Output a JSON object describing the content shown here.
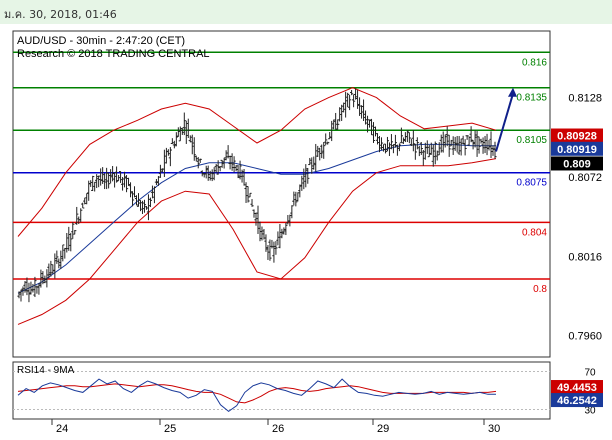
{
  "header": {
    "timestamp": "ม.ค. 30, 2018, 01:46"
  },
  "chart_data": {
    "type": "candlestick",
    "title": "AUD/USD - 30min - 2:47:20 (CET)",
    "subtitle": "Research © 2018 TRADING CENTRAL",
    "x_axis_labels": [
      "24",
      "25",
      "26",
      "29",
      "30"
    ],
    "y_axis_labels": [
      "0.8128",
      "0.8072",
      "0.8016",
      "0.7960"
    ],
    "ylim": [
      0.7945,
      0.8175
    ],
    "horizontal_levels": [
      {
        "label": "0.816",
        "value": 0.816,
        "color": "#008000"
      },
      {
        "label": "0.8135",
        "value": 0.8135,
        "color": "#008000"
      },
      {
        "label": "0.8105",
        "value": 0.8105,
        "color": "#008000"
      },
      {
        "label": "0.8075",
        "value": 0.8075,
        "color": "#0000cc"
      },
      {
        "label": "0.804",
        "value": 0.804,
        "color": "#dd0000"
      },
      {
        "label": "0.8",
        "value": 0.8,
        "color": "#dd0000"
      }
    ],
    "price_tags": [
      {
        "label": "0.80928",
        "value": 0.80928,
        "color": "#cc0000"
      },
      {
        "label": "0.80919",
        "value": 0.80919,
        "color": "#1a3a9a"
      },
      {
        "label": "0.809",
        "value": 0.809,
        "color": "#000000"
      }
    ],
    "price_path": [
      [
        0.7988,
        0.7996
      ],
      [
        0.7996,
        0.7992
      ],
      [
        0.7992,
        0.8
      ],
      [
        0.8,
        0.8005
      ],
      [
        0.8005,
        0.8012
      ],
      [
        0.8012,
        0.8022
      ],
      [
        0.8022,
        0.8035
      ],
      [
        0.8035,
        0.805
      ],
      [
        0.805,
        0.8065
      ],
      [
        0.8065,
        0.8072
      ],
      [
        0.8072,
        0.8068
      ],
      [
        0.8068,
        0.8075
      ],
      [
        0.8075,
        0.807
      ],
      [
        0.807,
        0.8066
      ],
      [
        0.8066,
        0.8055
      ],
      [
        0.8055,
        0.8048
      ],
      [
        0.8048,
        0.806
      ],
      [
        0.806,
        0.8075
      ],
      [
        0.8075,
        0.809
      ],
      [
        0.809,
        0.81
      ],
      [
        0.81,
        0.811
      ],
      [
        0.811,
        0.8095
      ],
      [
        0.8095,
        0.808
      ],
      [
        0.808,
        0.8072
      ],
      [
        0.8072,
        0.8078
      ],
      [
        0.8078,
        0.8085
      ],
      [
        0.8085,
        0.8082
      ],
      [
        0.8082,
        0.8075
      ],
      [
        0.8075,
        0.806
      ],
      [
        0.806,
        0.8042
      ],
      [
        0.8042,
        0.8025
      ],
      [
        0.8025,
        0.8018
      ],
      [
        0.8018,
        0.803
      ],
      [
        0.803,
        0.8045
      ],
      [
        0.8045,
        0.8058
      ],
      [
        0.8058,
        0.807
      ],
      [
        0.807,
        0.8082
      ],
      [
        0.8082,
        0.8092
      ],
      [
        0.8092,
        0.81
      ],
      [
        0.81,
        0.811
      ],
      [
        0.811,
        0.8122
      ],
      [
        0.8122,
        0.813
      ],
      [
        0.813,
        0.812
      ],
      [
        0.812,
        0.811
      ],
      [
        0.811,
        0.81
      ],
      [
        0.81,
        0.8094
      ],
      [
        0.8094,
        0.8092
      ],
      [
        0.8092,
        0.8096
      ],
      [
        0.8096,
        0.81
      ],
      [
        0.81,
        0.8094
      ],
      [
        0.8094,
        0.809
      ],
      [
        0.809,
        0.8088
      ],
      [
        0.8088,
        0.8094
      ],
      [
        0.8094,
        0.8098
      ],
      [
        0.8098,
        0.8092
      ],
      [
        0.8092,
        0.8096
      ],
      [
        0.8096,
        0.81
      ],
      [
        0.81,
        0.8094
      ],
      [
        0.8094,
        0.8096
      ],
      [
        0.8096,
        0.809
      ]
    ],
    "bollinger_upper": [
      0.803,
      0.805,
      0.8075,
      0.8095,
      0.8105,
      0.8112,
      0.812,
      0.8124,
      0.812,
      0.8108,
      0.8096,
      0.8105,
      0.812,
      0.8128,
      0.8135,
      0.8128,
      0.8115,
      0.8106,
      0.8108,
      0.811,
      0.8105
    ],
    "bollinger_lower": [
      0.7968,
      0.7975,
      0.7985,
      0.8,
      0.802,
      0.804,
      0.8055,
      0.8062,
      0.806,
      0.8035,
      0.8005,
      0.8,
      0.8015,
      0.804,
      0.8062,
      0.8075,
      0.808,
      0.808,
      0.808,
      0.8082,
      0.8085
    ],
    "moving_average": [
      0.799,
      0.7998,
      0.801,
      0.8025,
      0.804,
      0.8055,
      0.8068,
      0.8078,
      0.8082,
      0.8082,
      0.8078,
      0.8074,
      0.8074,
      0.8078,
      0.8084,
      0.809,
      0.8094,
      0.8095,
      0.8095,
      0.8094,
      0.8094
    ],
    "forecast_arrow": {
      "from_value": 0.809,
      "to_value": 0.8135
    },
    "rsi": {
      "label": "RSI14 - 9MA",
      "y_labels": [
        "70",
        "30"
      ],
      "ylim": [
        20,
        80
      ],
      "tags": [
        {
          "label": "49.4453",
          "value": 49.4453,
          "color": "#cc0000"
        },
        {
          "label": "46.2542",
          "value": 46.2542,
          "color": "#1a3a9a"
        }
      ],
      "rsi_values": [
        45,
        52,
        48,
        55,
        58,
        56,
        53,
        50,
        48,
        55,
        62,
        57,
        60,
        52,
        48,
        55,
        60,
        57,
        53,
        50,
        48,
        42,
        45,
        51,
        49,
        35,
        28,
        34,
        48,
        55,
        58,
        56,
        52,
        50,
        47,
        45,
        52,
        60,
        57,
        53,
        62,
        54,
        48,
        47,
        45,
        44,
        46,
        48,
        47,
        46,
        47,
        49,
        46,
        48,
        47,
        46,
        47,
        48,
        46,
        46
      ],
      "ma_values": [
        49,
        50,
        51,
        52,
        53,
        54,
        55,
        55,
        54,
        54,
        55,
        56,
        57,
        56,
        55,
        54,
        55,
        56,
        56,
        55,
        53,
        51,
        49,
        48,
        48,
        46,
        42,
        38,
        37,
        40,
        44,
        49,
        52,
        53,
        52,
        50,
        49,
        50,
        52,
        53,
        54,
        55,
        54,
        52,
        50,
        48,
        47,
        47,
        47,
        47,
        47,
        48,
        48,
        48,
        48,
        48,
        47,
        48,
        48,
        49
      ]
    }
  }
}
